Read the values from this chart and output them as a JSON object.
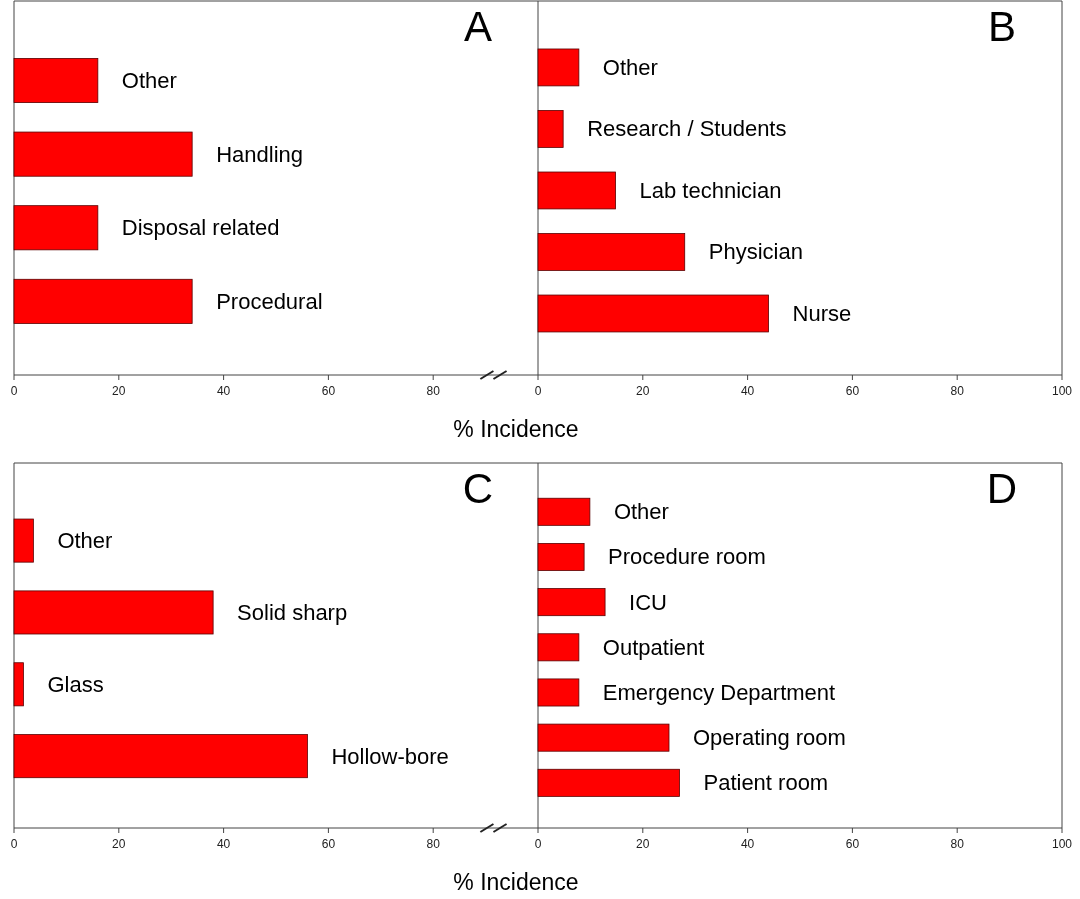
{
  "chart_data": [
    {
      "type": "bar",
      "orientation": "horizontal",
      "title": "A",
      "xlabel": "% Incidence",
      "categories": [
        "Other",
        "Handling",
        "Disposal related",
        "Procedural"
      ],
      "values": [
        16,
        34,
        16,
        34
      ],
      "color": "#ff0000",
      "xlim": [
        0,
        100
      ],
      "xticks": [
        0,
        20,
        40,
        60,
        80
      ]
    },
    {
      "type": "bar",
      "orientation": "horizontal",
      "title": "B",
      "categories": [
        "Other",
        "Research / Students",
        "Lab technician",
        "Physician",
        "Nurse"
      ],
      "values": [
        7.8,
        4.8,
        14.8,
        28,
        44
      ],
      "color": "#ff0000",
      "xlim": [
        0,
        100
      ],
      "xticks": [
        0,
        20,
        40,
        60,
        80,
        100
      ]
    },
    {
      "type": "bar",
      "orientation": "horizontal",
      "title": "C",
      "xlabel": "% Incidence",
      "categories": [
        "Other",
        "Solid sharp",
        "Glass",
        "Hollow-bore"
      ],
      "values": [
        3.7,
        38,
        1.8,
        56
      ],
      "color": "#ff0000",
      "xlim": [
        0,
        100
      ],
      "xticks": [
        0,
        20,
        40,
        60,
        80
      ]
    },
    {
      "type": "bar",
      "orientation": "horizontal",
      "title": "D",
      "categories": [
        "Other",
        "Procedure room",
        "ICU",
        "Outpatient",
        "Emergency Department",
        "Operating room",
        "Patient room"
      ],
      "values": [
        9.9,
        8.8,
        12.8,
        7.8,
        7.8,
        25,
        27
      ],
      "color": "#ff0000",
      "xlim": [
        0,
        100
      ],
      "xticks": [
        0,
        20,
        40,
        60,
        80,
        100
      ]
    }
  ]
}
